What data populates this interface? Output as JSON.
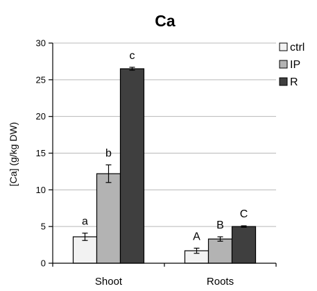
{
  "chart_data": {
    "type": "bar",
    "title": "Ca",
    "xlabel": "",
    "ylabel": "[Ca] (g/kg DW)",
    "ylim": [
      0,
      30
    ],
    "yticks": [
      0,
      5,
      10,
      15,
      20,
      25,
      30
    ],
    "categories": [
      "Shoot",
      "Roots"
    ],
    "grid": true,
    "legend_position": "right",
    "series": [
      {
        "name": "ctrl",
        "color": "#f2f2f2",
        "values": [
          3.6,
          1.7
        ],
        "errors": [
          0.5,
          0.35
        ],
        "labels": [
          "a",
          "A"
        ]
      },
      {
        "name": "IP",
        "color": "#b3b3b3",
        "values": [
          12.2,
          3.3
        ],
        "errors": [
          1.2,
          0.3
        ],
        "labels": [
          "b",
          "B"
        ]
      },
      {
        "name": "R",
        "color": "#3f3f3f",
        "values": [
          26.5,
          5.0
        ],
        "errors": [
          0.2,
          0.1
        ],
        "labels": [
          "c",
          "C"
        ]
      }
    ]
  }
}
